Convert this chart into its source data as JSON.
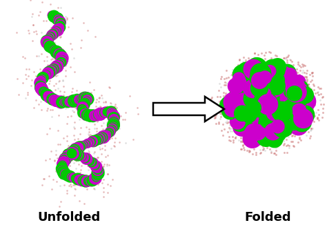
{
  "bg_color": "#ffffff",
  "label_unfolded": "Unfolded",
  "label_folded": "Folded",
  "label_fontsize": 13,
  "label_fontweight": "bold",
  "magenta": "#cc00cc",
  "green": "#00cc00",
  "dot_color_reddish": "#cc7777",
  "dot_color_gray": "#aaaaaa",
  "arrow_color": "#ffffff",
  "arrow_edge": "#000000",
  "fig_width": 4.74,
  "fig_height": 3.55,
  "dpi": 100
}
